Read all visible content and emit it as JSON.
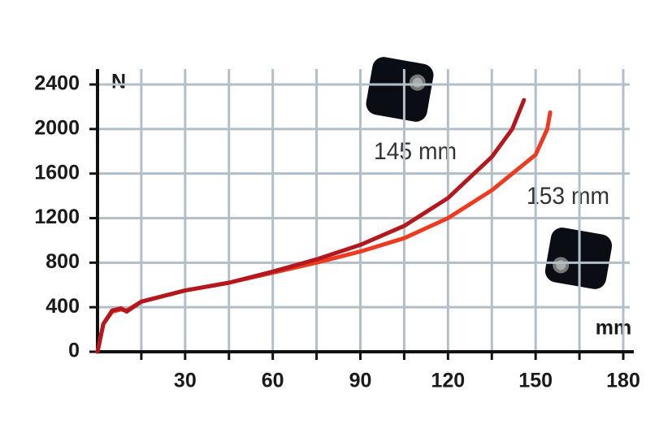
{
  "chart_data": {
    "type": "line",
    "y_label": "N",
    "x_label": "mm",
    "xlim": [
      0,
      180
    ],
    "ylim": [
      0,
      2400
    ],
    "xticks": [
      30,
      60,
      90,
      120,
      150,
      180
    ],
    "xminorticks": [
      15,
      45,
      75,
      105,
      135,
      165
    ],
    "yticks": [
      0,
      400,
      800,
      1200,
      1600,
      2000,
      2400
    ],
    "grid": true,
    "series": [
      {
        "name": "145 mm",
        "color": "#b3181f",
        "x": [
          0,
          2,
          5,
          8,
          10,
          15,
          30,
          45,
          60,
          75,
          90,
          105,
          120,
          135,
          142,
          146
        ],
        "values": [
          0,
          250,
          370,
          390,
          360,
          450,
          550,
          620,
          720,
          830,
          960,
          1130,
          1380,
          1750,
          2000,
          2260
        ]
      },
      {
        "name": "153 mm",
        "color": "#ec3b20",
        "x": [
          0,
          2,
          5,
          8,
          10,
          15,
          30,
          45,
          60,
          75,
          90,
          105,
          120,
          135,
          150,
          154,
          155
        ],
        "values": [
          0,
          250,
          360,
          380,
          370,
          450,
          550,
          620,
          710,
          800,
          900,
          1020,
          1200,
          1450,
          1770,
          2000,
          2150
        ]
      }
    ]
  }
}
